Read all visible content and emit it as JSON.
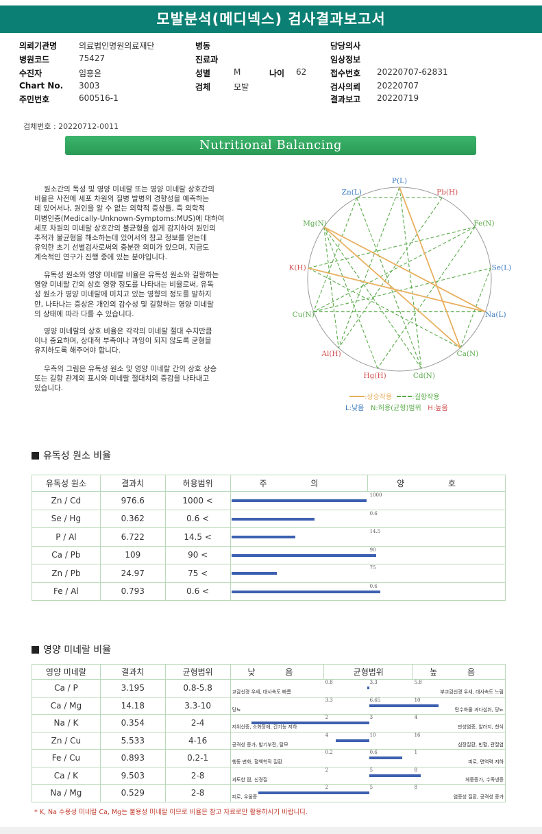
{
  "header": {
    "title": "모발분석(메디넥스) 검사결과보고서"
  },
  "info": {
    "institution_label": "의뢰기관명",
    "institution_value": "의료법인명원의료재단",
    "hospital_code_label": "병원코드",
    "hospital_code_value": "75427",
    "collector_label": "수진자",
    "collector_value": "임흥윤",
    "chart_label": "Chart No.",
    "chart_value": "3003",
    "resident_label": "주민번호",
    "resident_value": "600516-1",
    "ward_label": "병동",
    "dept_label": "진료과",
    "sex_label": "성별",
    "sex_value": "M",
    "age_label": "나이",
    "age_value": "62",
    "specimen_label": "검체",
    "specimen_value": "모발",
    "doctor_label": "담당의사",
    "clinical_label": "임상정보",
    "receipt_label": "접수번호",
    "receipt_value": "20220707-62831",
    "request_label": "검사의뢰",
    "request_value": "20220707",
    "report_label": "결과보고",
    "report_value": "20220719"
  },
  "serial": "검체번호 : 20220712-0011",
  "banner": "Nutritional Balancing",
  "description": [
    "원소간의 독성 및 영양 미네랄 또는 영양 미네랄 상호간의",
    "비율은 사전에 세포 차원의 질병 발병의 경향성을 예측하는",
    "데 있어서나, 원인을 알 수 없는 의학적 증상들, 즉 의학적",
    "미병인증(Medically-Unknown-Symptoms:MUS)에 대하여",
    "세포 차원의 미네랄 상호간의 불균형을 쉽게 감지하여 원인의",
    "추적과 불균형을 해소하는데 있어서의 참고 정보를 얻는데",
    "유익한 초기 선별검사로써의 충분한 의미가 있으며, 지금도",
    "계속적인 연구가 진행 중에 있는 분야입니다.",
    "유독성 원소와 영양 미네랄 비율은 유독성 원소와 길항하는",
    "영양 미네랄 간의 상호 영향 정도를 나타내는 비율로써, 유독",
    "성 원소가 영양 미네랄에 미치고 있는 영향의 정도를 말하지",
    "만, 나타나는 증상은 개인의 감수성 및 길항하는 영양 미네랄",
    "의 상태에 따라 다를 수 있습니다.",
    "영양 미네랄의 상호 비율은 각각의 미네랄 절대 수치만큼",
    "이나 중요하며, 상대적 부족이나 과잉이 되지 않도록 균형을",
    "유지하도록 해주어야 합니다.",
    "우측의 그림은 유독성 원소 및 영양 미네랄 간의 상호 상승",
    "또는 길항 관계의 표시와 미네랄 절대치의 증감을 나타내고",
    "있습니다."
  ],
  "wheel": {
    "nodes": [
      "P(L)",
      "Pb(H)",
      "Fe(N)",
      "Se(L)",
      "Na(L)",
      "Ca(N)",
      "Cd(N)",
      "Hg(H)",
      "Al(H)",
      "Cu(N)",
      "K(H)",
      "Mg(N)",
      "Zn(L)"
    ],
    "legend_synergy": ":상승작용",
    "legend_antagonism": ":길항작용",
    "legend_low": "L:낮음",
    "legend_normal": "N:허용(균형)범위",
    "legend_high": "H:높음",
    "colors": {
      "synergy": "#e8b060",
      "antagonism": "#5aaa4a",
      "low": "#3a7ac0",
      "normal": "#5aaa4a",
      "high": "#d25050"
    }
  },
  "toxic": {
    "section_title": "유독성 원소 비율",
    "headers": [
      "유독성 원소",
      "결과치",
      "허용범위",
      "주 의",
      "양 호"
    ],
    "rows": [
      {
        "ratio": "Zn / Cd",
        "result": "976.6",
        "range": "1000 <",
        "threshold": "1000",
        "fill": 0.983
      },
      {
        "ratio": "Se / Hg",
        "result": "0.362",
        "range": "0.6 <",
        "threshold": "0.6",
        "fill": 0.606
      },
      {
        "ratio": "P / Al",
        "result": "6.722",
        "range": "14.5 <",
        "threshold": "14.5",
        "fill": 0.466
      },
      {
        "ratio": "Ca / Pb",
        "result": "109",
        "range": "90 <",
        "threshold": "90",
        "fill": 1.05
      },
      {
        "ratio": "Zn / Pb",
        "result": "24.97",
        "range": "75 <",
        "threshold": "75",
        "fill": 0.33
      },
      {
        "ratio": "Fe / Al",
        "result": "0.793",
        "range": "0.6 <",
        "threshold": "0.6",
        "fill": 1.08
      }
    ]
  },
  "nutri": {
    "section_title": "영양 미네랄 비율",
    "headers": [
      "영양 미네랄",
      "결과치",
      "균형범위",
      "낮 음",
      "균형범위",
      "높 음"
    ],
    "rows": [
      {
        "ratio": "Ca / P",
        "result": "3.195",
        "range": "0.8-5.8",
        "t1": "0.8",
        "t2": "3.3",
        "t3": "5.8",
        "low": "교감신경 우세, 대사속도 빠름",
        "high": "부교감신경 우세, 대사속도 느림",
        "bar_from": 0.48,
        "bar_to": 0.5
      },
      {
        "ratio": "Ca / Mg",
        "result": "14.18",
        "range": "3.3-10",
        "t1": "3.3",
        "t2": "6.65",
        "t3": "10",
        "low": "당뇨",
        "high": "탄수화물 과다섭취, 당뇨",
        "bar_from": 0.5,
        "bar_to": 1.28
      },
      {
        "ratio": "Na / K",
        "result": "0.354",
        "range": "2-4",
        "t1": "2",
        "t2": "3",
        "t3": "4",
        "low": "저위산증, 소화장애, 간기능 저하",
        "high": "만성염증, 알러지, 천식",
        "bar_from": -0.82,
        "bar_to": 0.5
      },
      {
        "ratio": "Zn / Cu",
        "result": "5.533",
        "range": "4-16",
        "t1": "4",
        "t2": "10",
        "t3": "16",
        "low": "공격성 증가, 발기부전, 탈모",
        "high": "심장질환, 빈혈, 관절염",
        "bar_from": 0.13,
        "bar_to": 0.5
      },
      {
        "ratio": "Fe / Cu",
        "result": "0.893",
        "range": "0.2-1",
        "t1": "0.2",
        "t2": "0.6",
        "t3": "1",
        "low": "행동 변화, 혈액학적 질환",
        "high": "피로, 면역력 저하",
        "bar_from": 0.5,
        "bar_to": 0.87
      },
      {
        "ratio": "Ca / K",
        "result": "9.503",
        "range": "2-8",
        "t1": "2",
        "t2": "5",
        "t3": "8",
        "low": "과도한 땀, 신경질",
        "high": "체중증가, 수족냉증",
        "bar_from": 0.5,
        "bar_to": 1.08
      },
      {
        "ratio": "Na / Mg",
        "result": "0.529",
        "range": "2-8",
        "t1": "2",
        "t2": "5",
        "t3": "8",
        "low": "피로, 우울증",
        "high": "염증성 질환, 공격성 증가",
        "bar_from": -0.74,
        "bar_to": 0.5
      }
    ]
  },
  "footnote": "* K, Na 수용성 미네랄 Ca, Mg는 불용성 미네랄 이므로 비율은 참고 자료로만 활용하시기 바랍니다."
}
